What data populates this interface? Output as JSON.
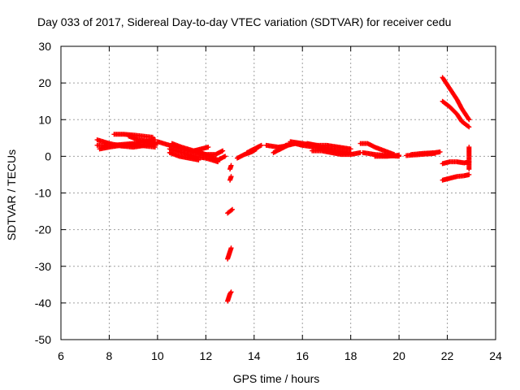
{
  "chart_data": {
    "type": "scatter",
    "title": "Day 033 of 2017, Sidereal Day-to-day VTEC variation (SDTVAR) for receiver cedu",
    "xlabel": "GPS time / hours",
    "ylabel": "SDTVAR / TECUs",
    "xlim": [
      6,
      24
    ],
    "ylim": [
      -50,
      30
    ],
    "xticks": [
      6,
      8,
      10,
      12,
      14,
      16,
      18,
      20,
      22,
      24
    ],
    "yticks": [
      30,
      20,
      10,
      0,
      -10,
      -20,
      -30,
      -40,
      -50
    ],
    "grid": true,
    "marker": "plus",
    "series": [
      {
        "name": "SDTVAR",
        "color": "#ff0000",
        "tracks": [
          {
            "x": [
              7.5,
              8.0,
              8.5,
              9.0,
              9.5,
              10.0
            ],
            "y": [
              4.5,
              3.5,
              2.8,
              2.5,
              3.0,
              3.5
            ]
          },
          {
            "x": [
              7.5,
              8.0,
              8.5,
              9.0,
              9.5,
              9.9
            ],
            "y": [
              3.0,
              3.0,
              3.2,
              3.5,
              4.0,
              4.5
            ]
          },
          {
            "x": [
              7.6,
              8.0,
              8.5,
              9.0,
              9.5,
              9.9
            ],
            "y": [
              2.0,
              2.5,
              3.0,
              3.2,
              2.8,
              2.5
            ]
          },
          {
            "x": [
              8.2,
              8.6,
              9.0,
              9.4,
              9.8
            ],
            "y": [
              6.0,
              6.0,
              5.8,
              5.5,
              5.2
            ]
          },
          {
            "x": [
              8.8,
              9.2,
              9.6,
              9.9
            ],
            "y": [
              5.5,
              4.5,
              4.0,
              3.5
            ]
          },
          {
            "x": [
              10.0,
              10.5,
              11.0,
              11.5,
              12.0,
              12.4,
              12.7
            ],
            "y": [
              4.0,
              3.0,
              2.0,
              1.0,
              0.5,
              0.5,
              1.5
            ]
          },
          {
            "x": [
              10.6,
              11.0,
              11.5,
              12.0,
              12.5,
              12.8
            ],
            "y": [
              3.5,
              2.5,
              1.5,
              0.5,
              -1.0,
              0.0
            ]
          },
          {
            "x": [
              10.5,
              11.0,
              11.5,
              12.0,
              12.5
            ],
            "y": [
              2.0,
              1.0,
              0.0,
              -0.5,
              -1.5
            ]
          },
          {
            "x": [
              10.5,
              10.9,
              11.3,
              11.7
            ],
            "y": [
              1.0,
              0.0,
              -0.5,
              -1.0
            ]
          },
          {
            "x": [
              11.5,
              11.8,
              12.1
            ],
            "y": [
              1.5,
              2.0,
              2.5
            ]
          },
          {
            "x": [
              13.0,
              13.05
            ],
            "y": [
              -3.5,
              -2.5
            ]
          },
          {
            "x": [
              13.0,
              13.05
            ],
            "y": [
              -6.5,
              -5.5
            ]
          },
          {
            "x": [
              12.9,
              13.1
            ],
            "y": [
              -15.5,
              -14.5
            ]
          },
          {
            "x": [
              12.9,
              12.95,
              13.0,
              13.05
            ],
            "y": [
              -28.0,
              -27.0,
              -26.0,
              -25.0
            ]
          },
          {
            "x": [
              12.9,
              12.95,
              13.0,
              13.05
            ],
            "y": [
              -39.5,
              -38.5,
              -37.5,
              -37.0
            ]
          },
          {
            "x": [
              13.3,
              13.6,
              13.9,
              14.1
            ],
            "y": [
              -0.5,
              0.5,
              1.2,
              2.0
            ]
          },
          {
            "x": [
              13.7,
              14.0,
              14.3
            ],
            "y": [
              1.0,
              2.0,
              3.0
            ]
          },
          {
            "x": [
              14.5,
              15.0,
              15.3
            ],
            "y": [
              3.0,
              2.5,
              2.8
            ]
          },
          {
            "x": [
              14.8,
              15.1,
              15.4,
              15.7,
              16.0
            ],
            "y": [
              1.0,
              2.0,
              3.0,
              3.5,
              3.0
            ]
          },
          {
            "x": [
              15.3,
              15.7,
              16.0,
              16.5,
              17.0,
              17.5,
              18.0
            ],
            "y": [
              3.0,
              3.5,
              3.0,
              2.5,
              2.0,
              1.5,
              1.0
            ]
          },
          {
            "x": [
              15.5,
              16.0,
              16.5,
              17.0,
              17.5,
              18.0
            ],
            "y": [
              4.0,
              3.5,
              3.0,
              3.0,
              2.5,
              2.0
            ]
          },
          {
            "x": [
              16.4,
              16.8,
              17.2,
              17.6,
              18.0,
              18.4
            ],
            "y": [
              1.5,
              1.5,
              1.0,
              0.5,
              0.5,
              1.0
            ]
          },
          {
            "x": [
              16.2,
              16.6,
              17.0,
              17.4
            ],
            "y": [
              3.5,
              3.0,
              2.0,
              1.0
            ]
          },
          {
            "x": [
              18.4,
              18.7,
              19.0,
              19.4,
              19.8
            ],
            "y": [
              3.5,
              3.5,
              2.5,
              1.5,
              0.5
            ]
          },
          {
            "x": [
              18.5,
              19.0,
              19.5,
              20.0
            ],
            "y": [
              1.0,
              0.5,
              0.2,
              0.0
            ]
          },
          {
            "x": [
              19.0,
              19.5,
              20.0
            ],
            "y": [
              0.0,
              0.0,
              0.3
            ]
          },
          {
            "x": [
              20.3,
              20.7,
              21.1,
              21.5
            ],
            "y": [
              0.2,
              0.4,
              0.6,
              0.8
            ]
          },
          {
            "x": [
              20.5,
              21.0,
              21.5,
              21.7
            ],
            "y": [
              0.5,
              0.8,
              1.0,
              1.2
            ]
          },
          {
            "x": [
              21.8,
              22.1,
              22.4,
              22.6,
              22.9
            ],
            "y": [
              21.5,
              18.5,
              15.5,
              13.0,
              10.0
            ]
          },
          {
            "x": [
              21.8,
              22.1,
              22.4,
              22.6,
              22.9
            ],
            "y": [
              15.0,
              13.5,
              11.5,
              9.5,
              8.0
            ]
          },
          {
            "x": [
              21.8,
              22.1,
              22.4,
              22.7,
              22.9
            ],
            "y": [
              -2.0,
              -1.5,
              -1.5,
              -1.8,
              -1.5
            ]
          },
          {
            "x": [
              21.8,
              22.1,
              22.4,
              22.7,
              22.9
            ],
            "y": [
              -6.5,
              -6.0,
              -5.5,
              -5.3,
              -5.0
            ]
          },
          {
            "x": [
              22.9,
              22.9,
              22.9
            ],
            "y": [
              2.5,
              0.5,
              -3.5
            ]
          }
        ]
      }
    ]
  }
}
